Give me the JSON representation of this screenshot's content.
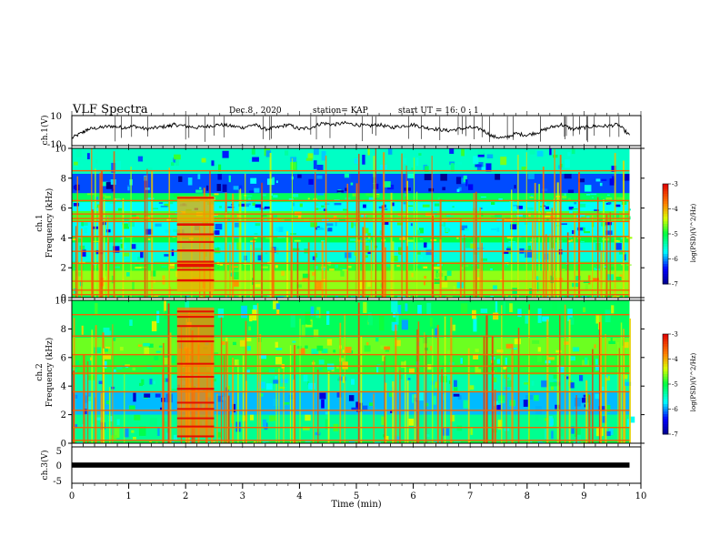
{
  "header": {
    "title": "VLF Spectra",
    "date": "Dec.8 , 2020",
    "station": "station= KAP",
    "start": "start UT = 16: 0 : 1"
  },
  "chart_data": [
    {
      "type": "line",
      "panel": "ch1-waveform",
      "ylabel": "ch.1(V)",
      "ylim": [
        -10,
        10
      ],
      "yticks": [
        "10",
        "-10"
      ],
      "xlim": [
        0,
        10
      ],
      "x_end": 9.8,
      "series": [
        {
          "x": [
            0.0,
            0.2,
            0.3,
            0.5,
            0.7,
            0.9,
            1.1,
            1.3,
            1.5,
            1.7,
            1.8,
            2.0,
            2.2,
            2.4,
            2.6,
            2.8,
            3.0,
            3.2,
            3.4,
            3.6,
            3.8,
            4.0,
            4.2,
            4.4,
            4.6,
            4.8,
            5.0,
            5.2,
            5.4,
            5.6,
            5.8,
            6.0,
            6.2,
            6.4,
            6.6,
            6.8,
            7.0,
            7.2,
            7.4,
            7.6,
            7.8,
            8.0,
            8.2,
            8.4,
            8.6,
            8.8,
            9.0,
            9.2,
            9.4,
            9.6,
            9.8
          ],
          "y": [
            -5,
            -1,
            1,
            2,
            3,
            2,
            3,
            1,
            2,
            3,
            4,
            3,
            2,
            3,
            4,
            3,
            2,
            4,
            1,
            2,
            4,
            1,
            2,
            5,
            4,
            5,
            4,
            3,
            4,
            2,
            3,
            4,
            2,
            1,
            0,
            1,
            2,
            1,
            -4,
            -5,
            -2,
            -3,
            -1,
            2,
            4,
            1,
            2,
            3,
            3,
            4,
            -3
          ]
        }
      ]
    },
    {
      "type": "heatmap",
      "panel": "ch1-spectrogram",
      "ylabel_line1": "ch.1",
      "ylabel_line2": "Frequency (kHz)",
      "ylim": [
        0,
        10
      ],
      "yticks": [
        "0",
        "2",
        "4",
        "6",
        "8",
        "10"
      ],
      "xlim": [
        0,
        10
      ],
      "x_end": 9.8,
      "rows": [
        {
          "f0": 0.0,
          "f1": 0.15,
          "level": -5.0
        },
        {
          "f0": 0.15,
          "f1": 1.8,
          "level": -4.6
        },
        {
          "f0": 1.8,
          "f1": 2.4,
          "level": -4.9
        },
        {
          "f0": 2.4,
          "f1": 3.7,
          "level": -5.6
        },
        {
          "f0": 3.7,
          "f1": 4.1,
          "level": -5.0
        },
        {
          "f0": 4.1,
          "f1": 5.1,
          "level": -5.7
        },
        {
          "f0": 5.1,
          "f1": 5.8,
          "level": -4.8
        },
        {
          "f0": 5.8,
          "f1": 6.4,
          "level": -5.7
        },
        {
          "f0": 6.4,
          "f1": 7.0,
          "level": -5.1
        },
        {
          "f0": 7.0,
          "f1": 8.3,
          "level": -6.2
        },
        {
          "f0": 8.3,
          "f1": 10.0,
          "level": -5.5
        }
      ],
      "burst": {
        "t0": 1.85,
        "t1": 2.5,
        "f0": 0.4,
        "f1": 6.8,
        "level": -4.0
      },
      "lines": [
        0.2,
        0.5,
        1.1,
        2.3,
        3.1,
        4.1,
        5.1,
        5.3,
        5.6,
        6.5,
        8.5
      ],
      "colorbar": {
        "label": "log(PSD)(V^2/Hz)",
        "range": [
          -7,
          -3
        ],
        "ticks": [
          "-3",
          "-4",
          "-5",
          "-6",
          "-7"
        ]
      }
    },
    {
      "type": "heatmap",
      "panel": "ch2-spectrogram",
      "ylabel_line1": "ch.2",
      "ylabel_line2": "Frequency (kHz)",
      "ylim": [
        0,
        10
      ],
      "yticks": [
        "0",
        "2",
        "4",
        "6",
        "8",
        "10"
      ],
      "xlim": [
        0,
        10
      ],
      "x_end": 9.8,
      "rows": [
        {
          "f0": 0.0,
          "f1": 0.15,
          "level": -5.0
        },
        {
          "f0": 0.15,
          "f1": 2.0,
          "level": -5.3
        },
        {
          "f0": 2.0,
          "f1": 3.6,
          "level": -5.9
        },
        {
          "f0": 3.6,
          "f1": 4.8,
          "level": -5.4
        },
        {
          "f0": 4.8,
          "f1": 6.2,
          "level": -4.9
        },
        {
          "f0": 6.2,
          "f1": 7.4,
          "level": -4.7
        },
        {
          "f0": 7.4,
          "f1": 10.0,
          "level": -5.1
        }
      ],
      "burst": {
        "t0": 1.85,
        "t1": 2.5,
        "f0": 0.4,
        "f1": 9.5,
        "level": -3.8
      },
      "lines": [
        0.2,
        1.1,
        2.3,
        3.6,
        4.9,
        5.4,
        6.2,
        7.5,
        9.0
      ],
      "colorbar": {
        "label": "log(PSD)(V^2/Hz)",
        "range": [
          -7,
          -3
        ],
        "ticks": [
          "-3",
          "-4",
          "-5",
          "-6",
          "-7"
        ]
      }
    },
    {
      "type": "line",
      "panel": "ch3-waveform",
      "ylabel": "ch.3(V)",
      "ylim": [
        -5,
        5
      ],
      "yticks": [
        "5",
        "0",
        "-5"
      ],
      "xlim": [
        0,
        10
      ],
      "x_end": 9.8,
      "xlabel": "Time (min)",
      "xticks": [
        "0",
        "1",
        "2",
        "3",
        "4",
        "5",
        "6",
        "7",
        "8",
        "9",
        "10"
      ],
      "series": [
        {
          "x": [
            0,
            9.8
          ],
          "y": [
            0,
            0
          ],
          "band_v": 0.7
        }
      ]
    }
  ]
}
